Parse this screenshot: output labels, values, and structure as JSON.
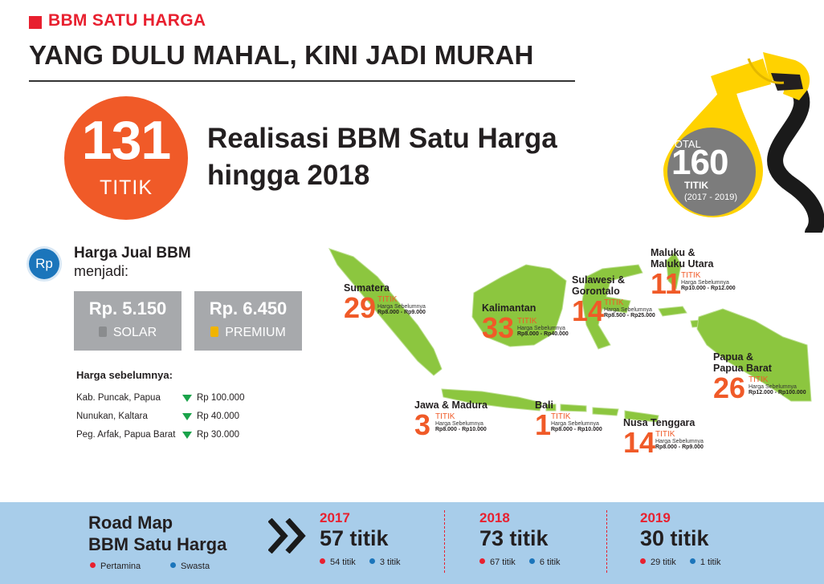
{
  "header": {
    "kicker": "BBM SATU HARGA",
    "headline": "YANG DULU MAHAL, KINI JADI MURAH"
  },
  "realisasi": {
    "count": "131",
    "unit": "TITIK",
    "text": "Realisasi BBM Satu Harga hingga 2018"
  },
  "total": {
    "label": "TOTAL",
    "count": "160",
    "unit": "TITIK",
    "period": "(2017 - 2019)"
  },
  "harga": {
    "badge": "Rp",
    "title": "Harga Jual BBM",
    "subtitle": "menjadi:",
    "prices": [
      {
        "value": "Rp. 5.150",
        "label": "SOLAR"
      },
      {
        "value": "Rp. 6.450",
        "label": "PREMIUM"
      }
    ],
    "previous_title": "Harga sebelumnya:",
    "previous": [
      {
        "location": "Kab. Puncak, Papua",
        "price": "Rp 100.000"
      },
      {
        "location": "Nunukan, Kaltara",
        "price": "Rp 40.000"
      },
      {
        "location": "Peg. Arfak, Papua Barat",
        "price": "Rp 30.000"
      }
    ]
  },
  "regions": [
    {
      "name1": "Sumatera",
      "name2": "",
      "count": "29",
      "unit": "TITIK",
      "note": "Harga Sebelumnya",
      "range": "Rp8.000 - Rp9.000"
    },
    {
      "name1": "Kalimantan",
      "name2": "",
      "count": "33",
      "unit": "TITIK",
      "note": "Harga Sebelumnya",
      "range": "Rp8.000 - Rp40.000"
    },
    {
      "name1": "Sulawesi &",
      "name2": "Gorontalo",
      "count": "14",
      "unit": "TITIK",
      "note": "Harga Sebelumnya",
      "range": "Rp8.500 - Rp25.000"
    },
    {
      "name1": "Maluku &",
      "name2": "Maluku Utara",
      "count": "11",
      "unit": "TITIK",
      "note": "Harga Sebelumnya",
      "range": "Rp10.000 - Rp12.000"
    },
    {
      "name1": "Papua &",
      "name2": "Papua Barat",
      "count": "26",
      "unit": "TITIK",
      "note": "Harga Sebelumnya",
      "range": "Rp12.000 - Rp100.000"
    },
    {
      "name1": "Jawa & Madura",
      "name2": "",
      "count": "3",
      "unit": "TITIK",
      "note": "Harga Sebelumnya",
      "range": "Rp8.000 - Rp10.000"
    },
    {
      "name1": "Bali",
      "name2": "",
      "count": "1",
      "unit": "TITIK",
      "note": "Harga Sebelumnya",
      "range": "Rp8.000 - Rp10.000"
    },
    {
      "name1": "Nusa Tenggara",
      "name2": "",
      "count": "14",
      "unit": "TITIK",
      "note": "Harga Sebelumnya",
      "range": "Rp8.000 - Rp9.000"
    }
  ],
  "roadmap": {
    "title1": "Road Map",
    "title2": "BBM Satu Harga",
    "legend": [
      "Pertamina",
      "Swasta"
    ],
    "years": [
      {
        "year": "2017",
        "total": "57 titik",
        "pertamina": "54 titik",
        "swasta": "3 titik"
      },
      {
        "year": "2018",
        "total": "73 titik",
        "pertamina": "67 titik",
        "swasta": "6 titik"
      },
      {
        "year": "2019",
        "total": "30 titik",
        "pertamina": "29 titik",
        "swasta": "1 titik"
      }
    ]
  },
  "colors": {
    "accent_red": "#e8202f",
    "accent_orange": "#f05a28",
    "map_green": "#8cc63f",
    "band_blue": "#a8cdea",
    "pertamina_dot": "#e8202f",
    "swasta_dot": "#1b75bb",
    "fuel_yellow": "#ffd200"
  },
  "icons": [
    "fuel-nozzle-icon",
    "rupiah-icon",
    "fuel-pump-icon",
    "down-triangle-icon",
    "double-chevron-icon"
  ]
}
